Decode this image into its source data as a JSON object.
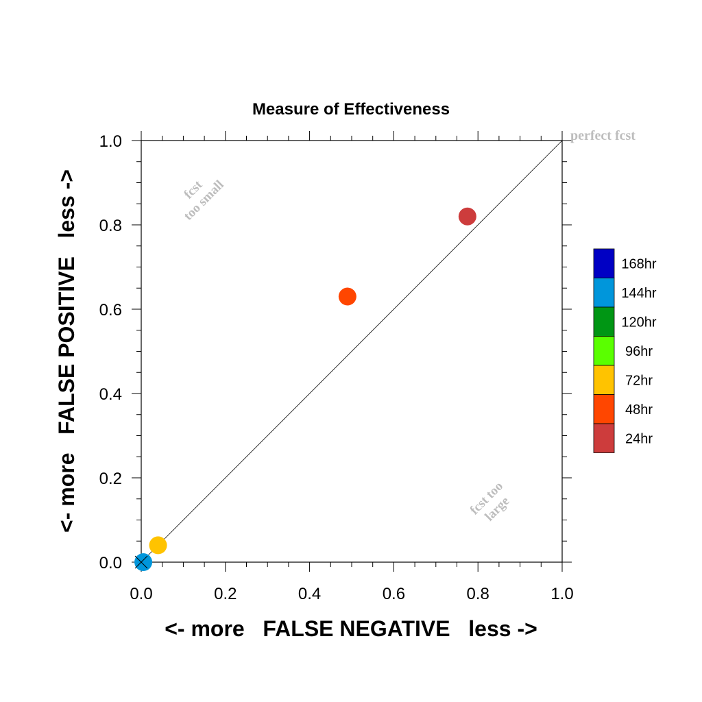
{
  "chart_data": {
    "type": "scatter",
    "title": "Measure of Effectiveness",
    "xlabel": "<- more   FALSE NEGATIVE   less ->",
    "ylabel": "<- more   FALSE POSITIVE   less ->",
    "xlim": [
      0.0,
      1.0
    ],
    "ylim": [
      0.0,
      1.0
    ],
    "x_ticks": [
      "0.0",
      "0.2",
      "0.4",
      "0.6",
      "0.8",
      "1.0"
    ],
    "y_ticks": [
      "0.0",
      "0.2",
      "0.4",
      "0.6",
      "0.8",
      "1.0"
    ],
    "grid": false,
    "reference_line": {
      "from": [
        0.0,
        0.0
      ],
      "to": [
        1.0,
        1.0
      ]
    },
    "annotations": {
      "perfect": "perfect fcst",
      "small_line1": "fcst",
      "small_line2": "too small",
      "large_line1": "fcst too",
      "large_line2": "large"
    },
    "legend": {
      "placement": "right",
      "entries": [
        {
          "label": "168hr",
          "color": "#0000c4"
        },
        {
          "label": "144hr",
          "color": "#0096db"
        },
        {
          "label": "120hr",
          "color": "#009614"
        },
        {
          "label": "96hr",
          "color": "#5aff00"
        },
        {
          "label": "72hr",
          "color": "#ffc300"
        },
        {
          "label": "48hr",
          "color": "#ff4600"
        },
        {
          "label": "24hr",
          "color": "#cd3c3c"
        }
      ]
    },
    "points": [
      {
        "lead": "144hr",
        "x": 0.005,
        "y": 0.0,
        "color": "#0096db"
      },
      {
        "lead": "72hr",
        "x": 0.04,
        "y": 0.04,
        "color": "#ffc300"
      },
      {
        "lead": "48hr",
        "x": 0.49,
        "y": 0.63,
        "color": "#ff4600"
      },
      {
        "lead": "24hr",
        "x": 0.775,
        "y": 0.82,
        "color": "#cd3c3c"
      }
    ]
  }
}
